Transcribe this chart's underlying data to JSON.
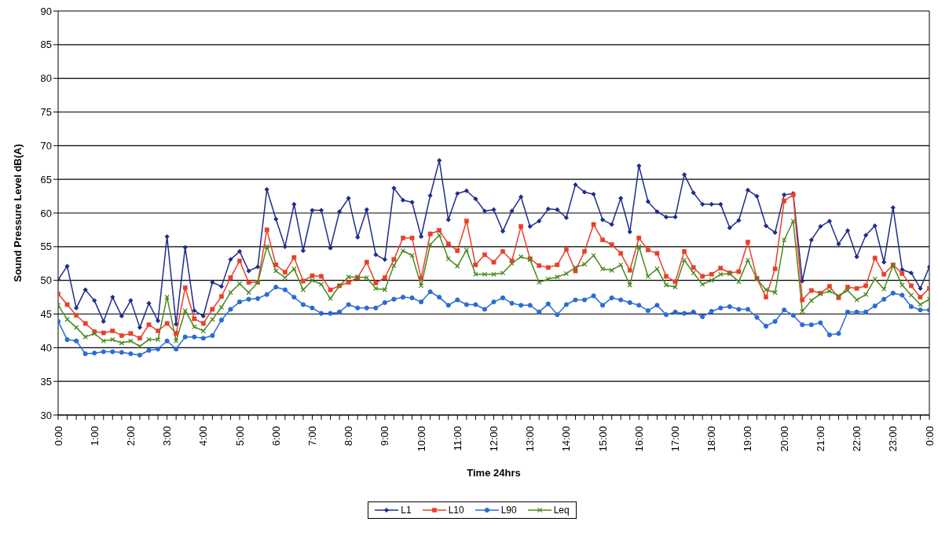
{
  "chart_data": {
    "type": "line",
    "xlabel": "Time 24hrs",
    "ylabel": "Sound Pressure Level dB(A)",
    "categories": [
      "0:00",
      null,
      null,
      null,
      "1:00",
      null,
      null,
      null,
      "2:00",
      null,
      null,
      null,
      "3:00",
      null,
      null,
      null,
      "4:00",
      null,
      null,
      null,
      "5:00",
      null,
      null,
      null,
      "6:00",
      null,
      null,
      null,
      "7:00",
      null,
      null,
      null,
      "8:00",
      null,
      null,
      null,
      "9:00",
      null,
      null,
      null,
      "10:00",
      null,
      null,
      null,
      "11:00",
      null,
      null,
      null,
      "12:00",
      null,
      null,
      null,
      "13:00",
      null,
      null,
      null,
      "14:00",
      null,
      null,
      null,
      "15:00",
      null,
      null,
      null,
      "16:00",
      null,
      null,
      null,
      "17:00",
      null,
      null,
      null,
      "18:00",
      null,
      null,
      null,
      "19:00",
      null,
      null,
      null,
      "20:00",
      null,
      null,
      null,
      "21:00",
      null,
      null,
      null,
      "22:00",
      null,
      null,
      null,
      "23:00",
      null,
      null,
      null,
      "0:00"
    ],
    "series": [
      {
        "name": "L1",
        "color": "#1f2d8a",
        "marker": "diamond",
        "values": [
          50.1,
          52.1,
          45.9,
          48.6,
          47.0,
          43.9,
          47.5,
          44.7,
          47.0,
          43.0,
          46.6,
          44.0,
          56.5,
          43.5,
          54.9,
          45.5,
          44.7,
          49.7,
          49.1,
          53.1,
          54.3,
          51.4,
          52.0,
          63.5,
          59.1,
          55.0,
          61.3,
          54.4,
          60.4,
          60.4,
          54.8,
          60.2,
          62.2,
          56.4,
          60.5,
          53.8,
          53.1,
          63.7,
          61.9,
          61.6,
          56.5,
          62.6,
          67.8,
          59.0,
          62.9,
          63.3,
          62.1,
          60.3,
          60.5,
          57.3,
          60.3,
          62.4,
          58.0,
          58.8,
          60.6,
          60.5,
          59.3,
          64.2,
          63.1,
          62.8,
          59.0,
          58.3,
          62.2,
          57.2,
          67.0,
          61.7,
          60.2,
          59.4,
          59.4,
          65.7,
          63.0,
          61.3,
          61.3,
          61.3,
          57.8,
          58.9,
          63.4,
          62.5,
          58.1,
          57.1,
          62.7,
          62.9,
          49.9,
          56.0,
          58.0,
          58.8,
          55.4,
          57.4,
          53.5,
          56.7,
          58.1,
          52.7,
          60.8,
          51.6,
          51.1,
          48.8,
          52.0
        ]
      },
      {
        "name": "L10",
        "color": "#e8402a",
        "marker": "square",
        "values": [
          48.0,
          46.4,
          44.8,
          43.6,
          42.4,
          42.2,
          42.5,
          41.8,
          42.1,
          41.4,
          43.4,
          42.5,
          43.6,
          42.1,
          48.9,
          44.3,
          43.6,
          45.7,
          47.6,
          50.4,
          52.9,
          49.7,
          49.7,
          57.5,
          52.3,
          51.2,
          53.4,
          49.9,
          50.7,
          50.6,
          48.6,
          49.2,
          49.7,
          50.4,
          52.7,
          49.6,
          50.4,
          53.1,
          56.3,
          56.3,
          50.3,
          56.9,
          57.4,
          55.4,
          54.4,
          58.8,
          52.3,
          53.8,
          52.7,
          54.3,
          52.9,
          58.0,
          53.2,
          52.2,
          51.9,
          52.3,
          54.6,
          51.4,
          54.3,
          58.3,
          56.0,
          55.3,
          54.0,
          51.5,
          56.3,
          54.5,
          54.0,
          50.6,
          49.8,
          54.3,
          51.9,
          50.6,
          50.9,
          51.8,
          51.1,
          51.3,
          55.7,
          50.3,
          47.5,
          51.7,
          61.8,
          62.7,
          47.1,
          48.5,
          48.1,
          49.1,
          47.4,
          49.0,
          48.8,
          49.2,
          53.3,
          50.9,
          52.3,
          51.0,
          49.2,
          47.5,
          48.8
        ]
      },
      {
        "name": "L90",
        "color": "#2b6cd4",
        "marker": "circle",
        "values": [
          43.9,
          41.2,
          41.0,
          39.1,
          39.2,
          39.4,
          39.4,
          39.3,
          39.1,
          38.9,
          39.6,
          39.8,
          41.0,
          39.8,
          41.6,
          41.6,
          41.4,
          41.8,
          44.1,
          45.7,
          46.8,
          47.2,
          47.3,
          47.9,
          49.0,
          48.6,
          47.5,
          46.4,
          45.9,
          45.1,
          45.1,
          45.3,
          46.4,
          45.9,
          45.9,
          45.9,
          46.7,
          47.2,
          47.5,
          47.4,
          46.8,
          48.3,
          47.5,
          46.3,
          47.1,
          46.4,
          46.4,
          45.7,
          46.8,
          47.4,
          46.6,
          46.3,
          46.3,
          45.3,
          46.5,
          44.9,
          46.4,
          47.1,
          47.1,
          47.7,
          46.3,
          47.4,
          47.1,
          46.7,
          46.3,
          45.5,
          46.3,
          44.9,
          45.3,
          45.1,
          45.3,
          44.6,
          45.4,
          45.9,
          46.1,
          45.7,
          45.7,
          44.5,
          43.2,
          43.9,
          45.6,
          44.8,
          43.4,
          43.4,
          43.7,
          41.9,
          42.1,
          45.3,
          45.3,
          45.3,
          46.2,
          47.2,
          48.1,
          47.8,
          46.1,
          45.6,
          45.6
        ]
      },
      {
        "name": "Leq",
        "color": "#4a8a1e",
        "marker": "cross",
        "values": [
          46.3,
          44.2,
          43.0,
          41.6,
          42.1,
          41.0,
          41.2,
          40.7,
          41.0,
          40.2,
          41.2,
          41.2,
          47.5,
          41.0,
          45.5,
          43.1,
          42.5,
          44.2,
          46.0,
          48.2,
          49.5,
          48.2,
          49.7,
          55.0,
          51.4,
          50.4,
          51.7,
          48.6,
          50.0,
          49.4,
          47.3,
          49.2,
          50.5,
          50.5,
          50.4,
          48.8,
          48.6,
          52.2,
          54.4,
          53.7,
          49.2,
          55.3,
          56.7,
          53.2,
          52.1,
          54.5,
          50.9,
          50.9,
          50.9,
          51.1,
          52.5,
          53.5,
          53.1,
          49.7,
          50.2,
          50.5,
          51.0,
          51.9,
          52.4,
          53.7,
          51.7,
          51.5,
          52.3,
          49.3,
          55.0,
          50.6,
          51.7,
          49.3,
          49.0,
          53.0,
          51.1,
          49.4,
          50.0,
          50.9,
          51.0,
          49.8,
          53.0,
          50.2,
          48.6,
          48.2,
          56.0,
          58.8,
          45.4,
          47.0,
          48.0,
          48.4,
          47.7,
          48.5,
          47.1,
          47.9,
          50.2,
          48.7,
          52.2,
          49.3,
          47.8,
          46.4,
          47.2
        ]
      }
    ],
    "ylim": [
      30,
      90
    ],
    "yticks": [
      30,
      35,
      40,
      45,
      50,
      55,
      60,
      65,
      70,
      75,
      80,
      85,
      90
    ],
    "grid": "y",
    "legend": "bottom",
    "line_style": "solid"
  }
}
